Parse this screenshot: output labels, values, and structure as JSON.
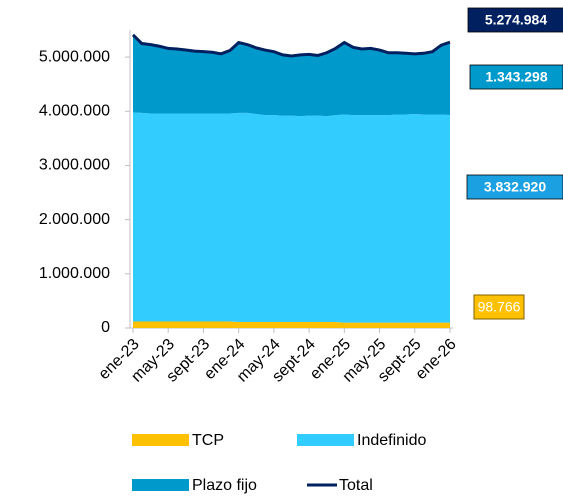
{
  "chart_data": {
    "type": "stacked_area",
    "categories": [
      "ene-23",
      null,
      null,
      null,
      "may-23",
      null,
      null,
      null,
      "sept-23",
      null,
      null,
      null,
      "ene-24",
      null,
      null,
      null,
      "may-24",
      null,
      null,
      null,
      "sept-24",
      null,
      null,
      null,
      "ene-25",
      null,
      null,
      null,
      "may-25",
      null,
      null,
      null,
      "sept-25",
      null,
      null,
      null,
      "ene-26"
    ],
    "series": [
      {
        "name": "TCP",
        "color": "#ffc000",
        "label_color": "#ffc000",
        "values": [
          120000,
          120000,
          120000,
          120000,
          120000,
          120000,
          120000,
          120000,
          120000,
          120000,
          120000,
          120000,
          110000,
          110000,
          110000,
          110000,
          110000,
          110000,
          110000,
          110000,
          110000,
          110000,
          110000,
          110000,
          100000,
          100000,
          100000,
          100000,
          100000,
          100000,
          100000,
          100000,
          100000,
          100000,
          100000,
          100000,
          98766
        ],
        "value_labels": [
          null,
          null,
          null,
          null,
          null,
          null,
          null,
          null,
          null,
          null,
          null,
          null,
          null,
          null,
          null,
          null,
          null,
          null,
          null,
          null,
          null,
          null,
          null,
          null,
          null,
          null,
          null,
          null,
          null,
          null,
          null,
          null,
          null,
          null,
          null,
          null,
          "98.766"
        ]
      },
      {
        "name": "Indefinido",
        "color": "#33ccff",
        "label_color": "#1ba1e2",
        "values": [
          3860000,
          3850000,
          3840000,
          3840000,
          3840000,
          3840000,
          3840000,
          3840000,
          3840000,
          3840000,
          3840000,
          3840000,
          3860000,
          3860000,
          3840000,
          3820000,
          3820000,
          3810000,
          3810000,
          3800000,
          3810000,
          3810000,
          3800000,
          3820000,
          3840000,
          3830000,
          3830000,
          3830000,
          3830000,
          3830000,
          3840000,
          3840000,
          3850000,
          3840000,
          3840000,
          3840000,
          3832920
        ],
        "value_labels": [
          null,
          null,
          null,
          null,
          null,
          null,
          null,
          null,
          null,
          null,
          null,
          null,
          null,
          null,
          null,
          null,
          null,
          null,
          null,
          null,
          null,
          null,
          null,
          null,
          null,
          null,
          null,
          null,
          null,
          null,
          null,
          null,
          null,
          null,
          null,
          null,
          "3.832.920"
        ]
      },
      {
        "name": "Plazo fijo",
        "color": "#0099cc",
        "label_color": "#0099cc",
        "values": [
          1430000,
          1280000,
          1270000,
          1240000,
          1200000,
          1190000,
          1170000,
          1150000,
          1140000,
          1130000,
          1100000,
          1160000,
          1300000,
          1260000,
          1220000,
          1200000,
          1170000,
          1120000,
          1100000,
          1130000,
          1130000,
          1110000,
          1170000,
          1230000,
          1330000,
          1250000,
          1220000,
          1230000,
          1200000,
          1150000,
          1140000,
          1130000,
          1110000,
          1130000,
          1160000,
          1280000,
          1343298
        ],
        "value_labels": [
          null,
          null,
          null,
          null,
          null,
          null,
          null,
          null,
          null,
          null,
          null,
          null,
          null,
          null,
          null,
          null,
          null,
          null,
          null,
          null,
          null,
          null,
          null,
          null,
          null,
          null,
          null,
          null,
          null,
          null,
          null,
          null,
          null,
          null,
          null,
          null,
          "1.343.298"
        ]
      },
      {
        "name": "Total",
        "color": "#002060",
        "label_color": "#002060",
        "line": true,
        "values": [
          5410000,
          5250000,
          5230000,
          5200000,
          5160000,
          5150000,
          5130000,
          5110000,
          5100000,
          5090000,
          5060000,
          5120000,
          5270000,
          5230000,
          5170000,
          5130000,
          5100000,
          5040000,
          5020000,
          5040000,
          5050000,
          5030000,
          5080000,
          5160000,
          5270000,
          5180000,
          5150000,
          5160000,
          5130000,
          5080000,
          5080000,
          5070000,
          5060000,
          5070000,
          5100000,
          5220000,
          5274984
        ],
        "value_labels": [
          null,
          null,
          null,
          null,
          null,
          null,
          null,
          null,
          null,
          null,
          null,
          null,
          null,
          null,
          null,
          null,
          null,
          null,
          null,
          null,
          null,
          null,
          null,
          null,
          null,
          null,
          null,
          null,
          null,
          null,
          null,
          null,
          null,
          null,
          null,
          null,
          "5.274.984"
        ]
      }
    ],
    "ylim": [
      0,
      5500000
    ],
    "yticks": [
      0,
      {
        "value": 1000000,
        "label": "1.000.000"
      },
      {
        "value": 2000000,
        "label": "2.000.000"
      },
      {
        "value": 3000000,
        "label": "3.000.000"
      },
      {
        "value": 4000000,
        "label": "4.000.000"
      },
      {
        "value": 5000000,
        "label": "5.000.000"
      }
    ],
    "grid": false,
    "legend": "bottom"
  }
}
